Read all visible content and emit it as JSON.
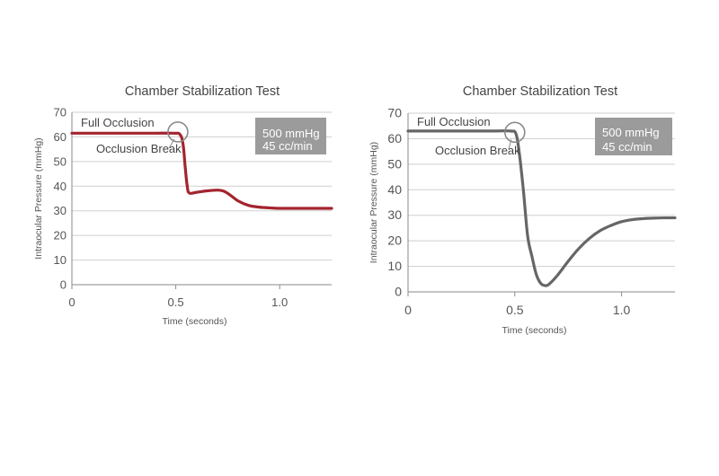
{
  "chart_data": [
    {
      "type": "line",
      "title": "Chamber Stabilization Test",
      "xlabel": "Time (seconds)",
      "ylabel": "Intraocular Pressure (mmHg)",
      "xlim": [
        0,
        1.25
      ],
      "ylim": [
        0,
        70
      ],
      "xticks": [
        "0",
        "0.5",
        "1.0"
      ],
      "xtick_values": [
        0,
        0.5,
        1.0
      ],
      "yticks": [
        "0",
        "10",
        "20",
        "30",
        "40",
        "50",
        "60",
        "70"
      ],
      "ytick_values": [
        0,
        10,
        20,
        30,
        40,
        50,
        60,
        70
      ],
      "grid": "horizontal",
      "line_color": "#a3242f",
      "series": [
        {
          "x": [
            0,
            0.1,
            0.2,
            0.3,
            0.4,
            0.49,
            0.52,
            0.535,
            0.545,
            0.555,
            0.565,
            0.6,
            0.65,
            0.7,
            0.73,
            0.76,
            0.8,
            0.85,
            0.9,
            0.95,
            1.0,
            1.1,
            1.25
          ],
          "y": [
            61.5,
            61.5,
            61.5,
            61.5,
            61.5,
            61.5,
            61,
            57,
            48,
            40,
            37.2,
            37.5,
            38.1,
            38.4,
            38,
            36.5,
            34,
            32.2,
            31.5,
            31.2,
            31,
            31,
            31
          ]
        }
      ],
      "annotations": {
        "upper": "Full Occlusion",
        "lower": "Occlusion Break",
        "box": [
          "500 mmHg",
          "45 cc/min"
        ]
      },
      "marker_at": [
        0.51,
        62
      ]
    },
    {
      "type": "line",
      "title": "Chamber Stabilization Test",
      "xlabel": "Time (seconds)",
      "ylabel": "Intraocular Pressure (mmHg)",
      "xlim": [
        0,
        1.25
      ],
      "ylim": [
        0,
        70
      ],
      "xticks": [
        "0",
        "0.5",
        "1.0"
      ],
      "xtick_values": [
        0,
        0.5,
        1.0
      ],
      "yticks": [
        "0",
        "10",
        "20",
        "30",
        "40",
        "50",
        "60",
        "70"
      ],
      "ytick_values": [
        0,
        10,
        20,
        30,
        40,
        50,
        60,
        70
      ],
      "grid": "horizontal",
      "line_color": "#666666",
      "series": [
        {
          "x": [
            0,
            0.1,
            0.2,
            0.3,
            0.4,
            0.48,
            0.505,
            0.52,
            0.54,
            0.56,
            0.58,
            0.6,
            0.62,
            0.64,
            0.66,
            0.7,
            0.75,
            0.8,
            0.85,
            0.9,
            0.95,
            1.0,
            1.05,
            1.1,
            1.15,
            1.2,
            1.25
          ],
          "y": [
            63,
            63,
            63,
            63,
            63,
            63,
            62,
            55,
            40,
            22,
            14,
            7,
            3.5,
            2.5,
            3,
            6.5,
            12,
            17,
            21,
            24,
            26,
            27.5,
            28.3,
            28.7,
            28.9,
            29,
            29
          ]
        }
      ],
      "annotations": {
        "upper": "Full Occlusion",
        "lower": "Occlusion Break",
        "box": [
          "500 mmHg",
          "45 cc/min"
        ]
      },
      "marker_at": [
        0.5,
        62.5
      ]
    }
  ]
}
